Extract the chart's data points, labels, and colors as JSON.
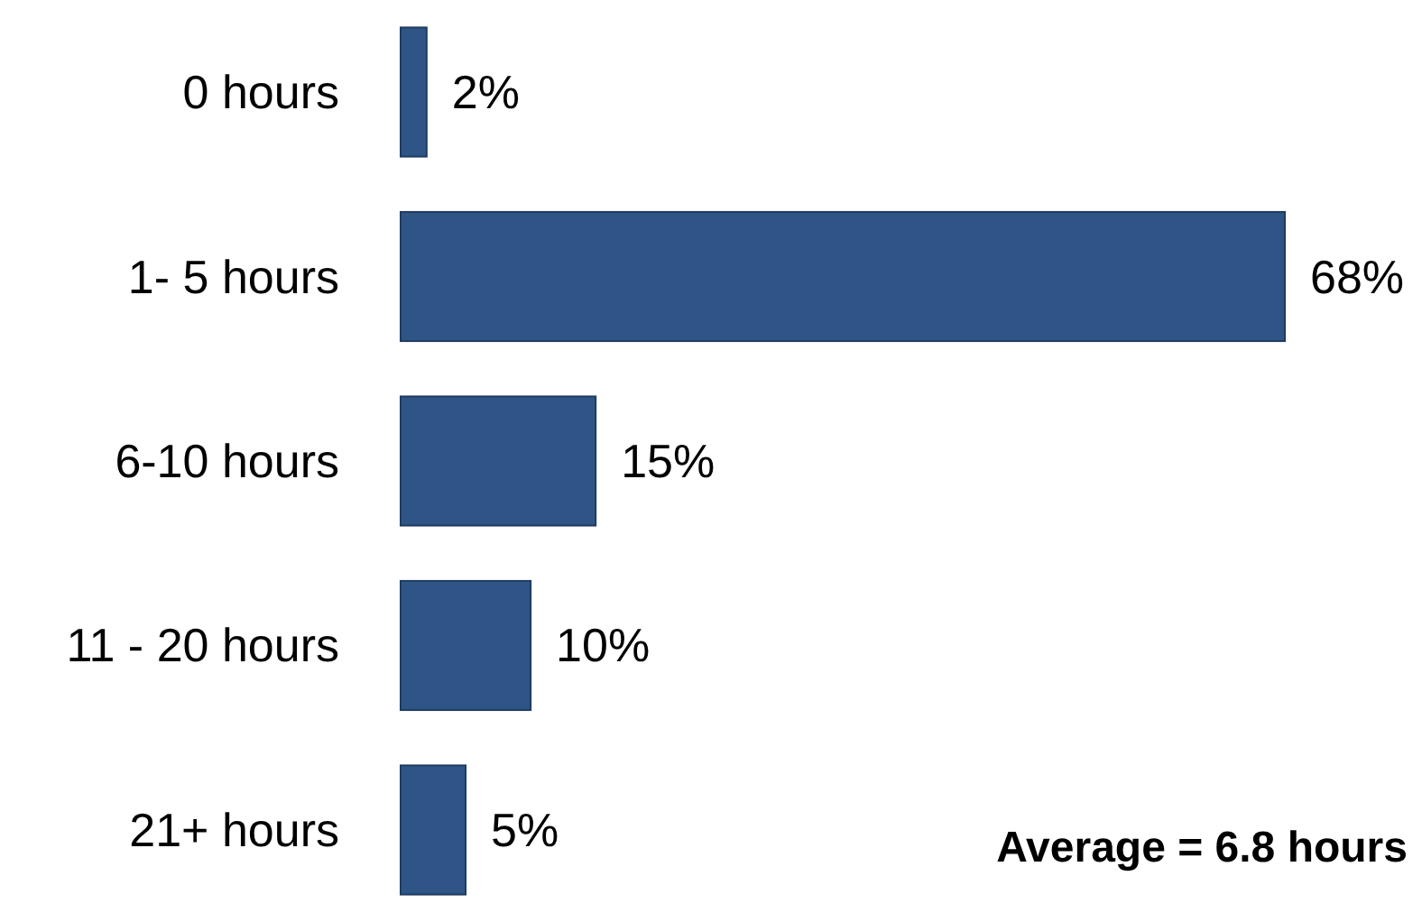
{
  "chart_data": {
    "type": "bar",
    "orientation": "horizontal",
    "categories": [
      "0 hours",
      "1- 5 hours",
      "6-10 hours",
      "11 - 20 hours",
      "21+ hours"
    ],
    "values": [
      2,
      68,
      15,
      10,
      5
    ],
    "color": "#2e5585",
    "value_labels": [
      "2%",
      "68%",
      "15%",
      "10%",
      "5%"
    ],
    "annotations": [
      "Average = 6.8 hours"
    ]
  }
}
